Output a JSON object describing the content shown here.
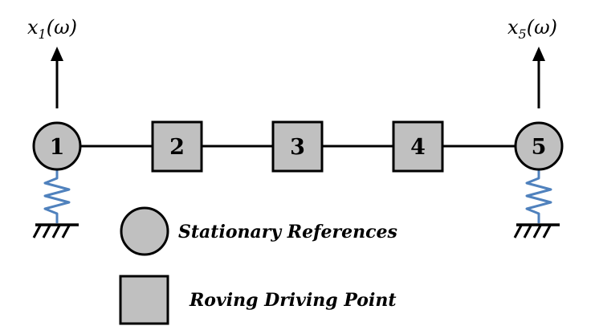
{
  "nodes": [
    {
      "label": "1",
      "shape": "circle"
    },
    {
      "label": "2",
      "shape": "square"
    },
    {
      "label": "3",
      "shape": "square"
    },
    {
      "label": "4",
      "shape": "square"
    },
    {
      "label": "5",
      "shape": "circle"
    }
  ],
  "responses": {
    "left": {
      "var": "x",
      "sub": "1",
      "arg": "(ω)"
    },
    "right": {
      "var": "x",
      "sub": "5",
      "arg": "(ω)"
    }
  },
  "legend": {
    "circle_label": "Stationary References",
    "square_label": "Roving Driving Point"
  },
  "colors": {
    "node_fill": "#c0c0c0",
    "stroke": "#000000",
    "spring": "#4f81bd"
  }
}
